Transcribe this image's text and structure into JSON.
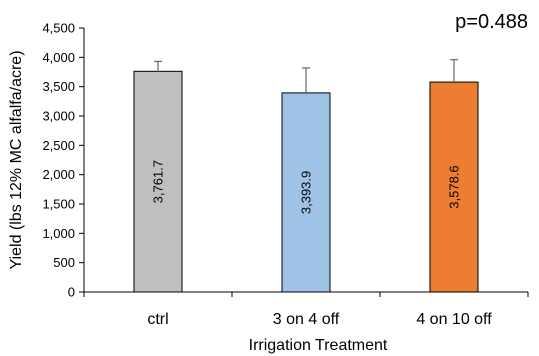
{
  "chart_data": {
    "type": "bar",
    "annotation": "p=0.488",
    "xlabel": "Irrigation Treatment",
    "ylabel": "Yield (lbs 12% MC alfalfa/acre)",
    "categories": [
      "ctrl",
      "3 on 4 off",
      "4 on 10 off"
    ],
    "values": [
      3761.7,
      3393.9,
      3578.6
    ],
    "value_labels": [
      "3,761.7",
      "3,393.9",
      "3,578.6"
    ],
    "error_upper": [
      3930,
      3820,
      3960
    ],
    "bar_colors": [
      "#bfbfbf",
      "#9fc3e7",
      "#ed7d31"
    ],
    "ylim": [
      0,
      4500
    ],
    "yticks": [
      0,
      500,
      1000,
      1500,
      2000,
      2500,
      3000,
      3500,
      4000,
      4500
    ],
    "ytick_labels": [
      "0",
      "500",
      "1,000",
      "1,500",
      "2,000",
      "2,500",
      "3,000",
      "3,500",
      "4,000",
      "4,500"
    ],
    "grid": false,
    "legend": "none"
  }
}
